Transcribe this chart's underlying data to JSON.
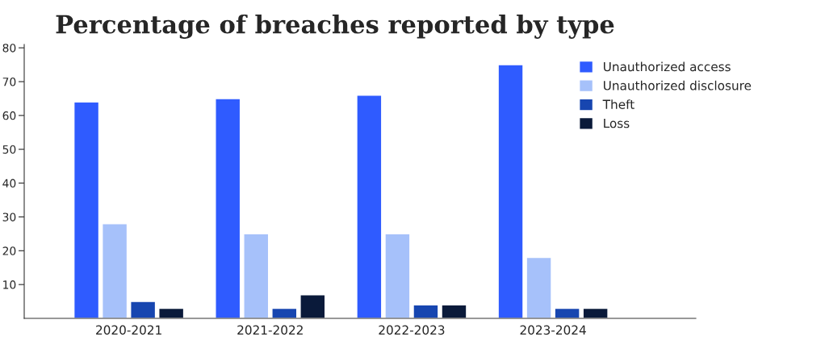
{
  "chart_data": {
    "type": "bar",
    "title": "Percentage of breaches reported by type",
    "categories": [
      "2020-2021",
      "2021-2022",
      "2022-2023",
      "2023-2024"
    ],
    "series": [
      {
        "name": "Unauthorized access",
        "color": "#2f5bff",
        "values": [
          64,
          65,
          66,
          75
        ]
      },
      {
        "name": "Unauthorized disclosure",
        "color": "#a6c1fa",
        "values": [
          28,
          25,
          25,
          18
        ]
      },
      {
        "name": "Theft",
        "color": "#1746b0",
        "values": [
          5,
          3,
          4,
          3
        ]
      },
      {
        "name": "Loss",
        "color": "#0a1a3a",
        "values": [
          3,
          7,
          4,
          3
        ]
      }
    ],
    "ylim": [
      0,
      81
    ],
    "yticks": [
      10,
      20,
      30,
      40,
      50,
      60,
      70,
      80
    ],
    "grid": false,
    "legend": "top right"
  }
}
